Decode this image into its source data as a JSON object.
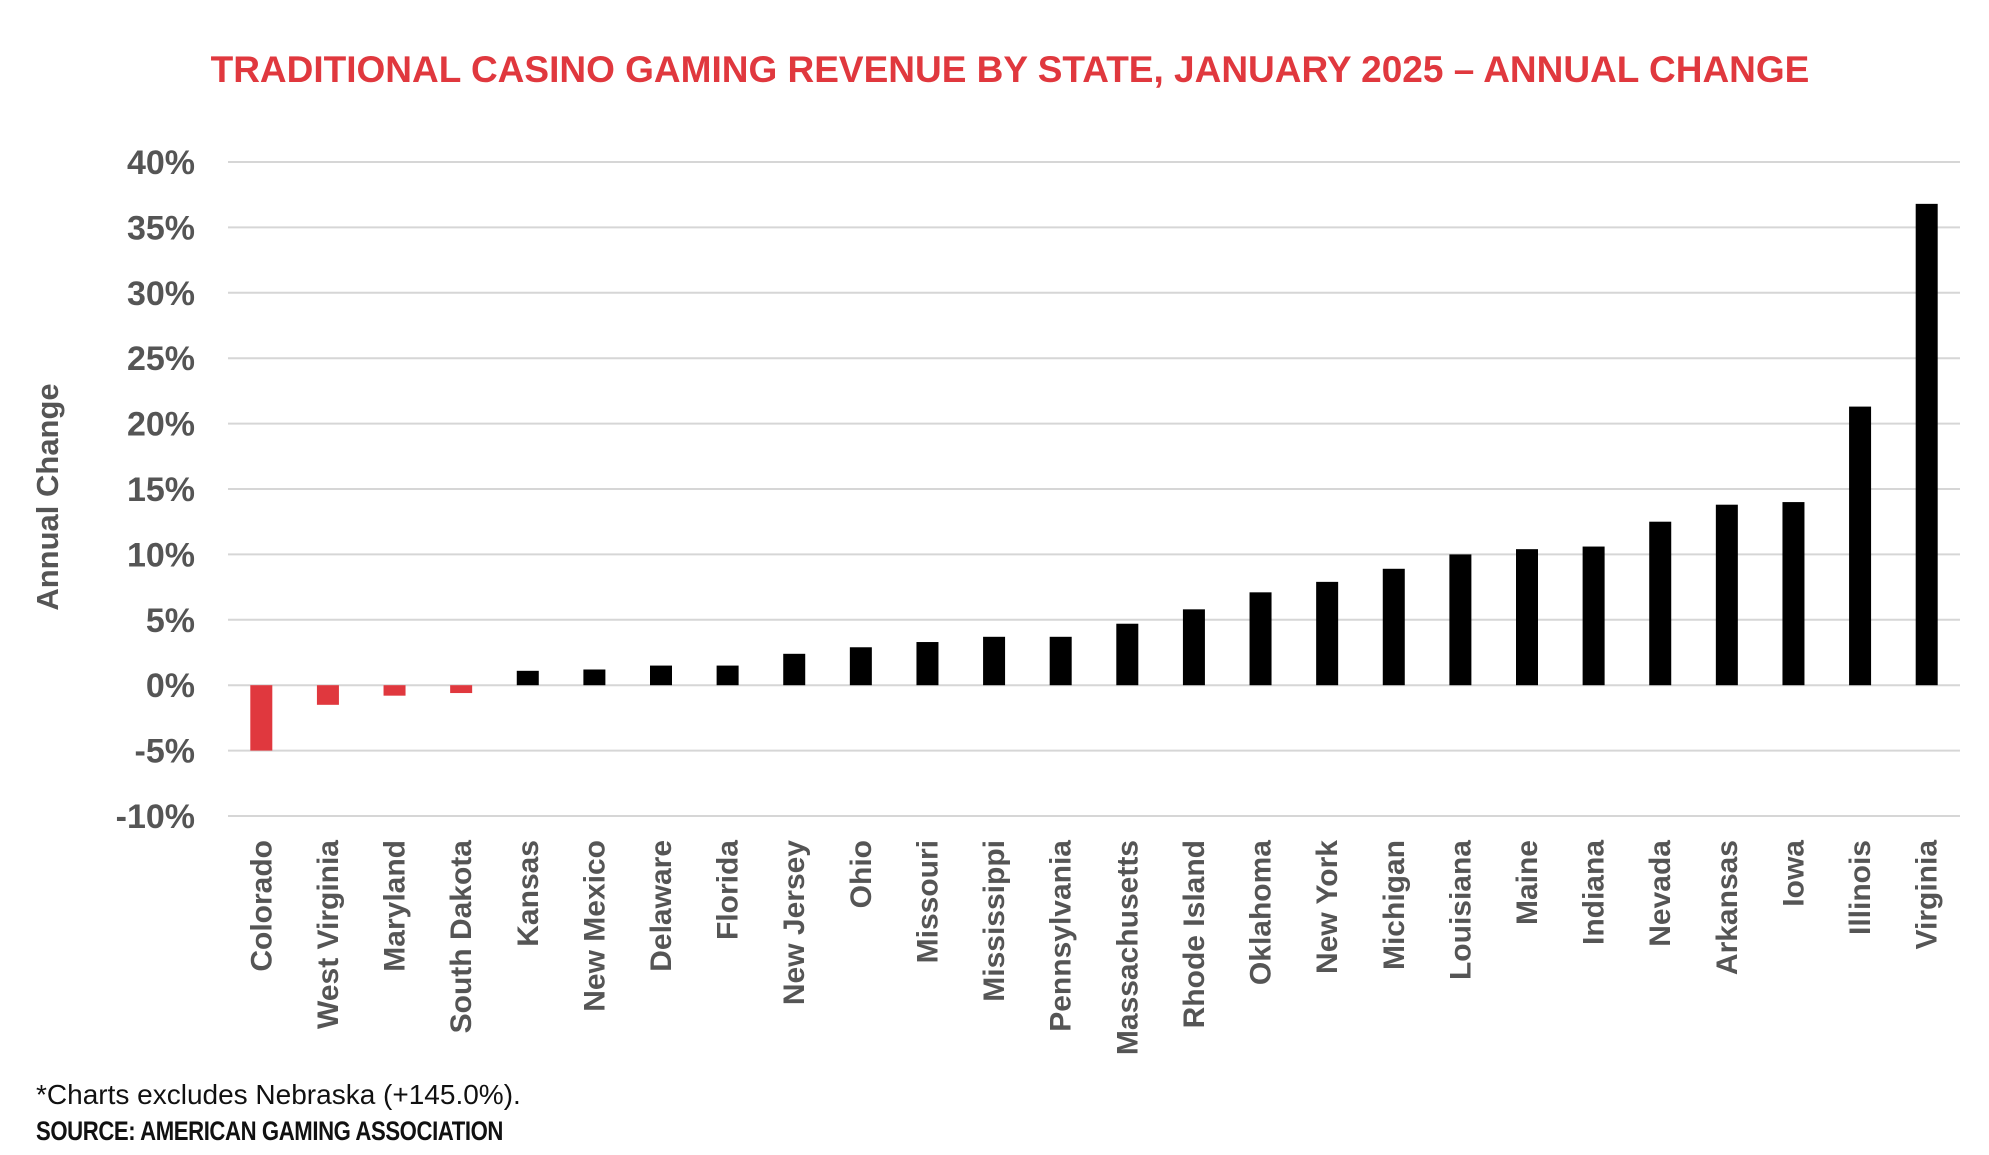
{
  "chart_data": {
    "type": "bar",
    "title": "TRADITIONAL CASINO GAMING REVENUE BY STATE, JANUARY 2025 – ANNUAL CHANGE",
    "xlabel": "",
    "ylabel": "Annual Change",
    "ylim": [
      -10,
      40
    ],
    "yticks": [
      40,
      35,
      30,
      25,
      20,
      15,
      10,
      5,
      0,
      -5,
      -10
    ],
    "ytick_labels": [
      "40%",
      "35%",
      "30%",
      "25%",
      "20%",
      "15%",
      "10%",
      "5%",
      "0%",
      "-5%",
      "-10%"
    ],
    "grid": true,
    "categories": [
      "Colorado",
      "West Virginia",
      "Maryland",
      "South Dakota",
      "Kansas",
      "New Mexico",
      "Delaware",
      "Florida",
      "New Jersey",
      "Ohio",
      "Missouri",
      "Mississippi",
      "Pennsylvania",
      "Massachusetts",
      "Rhode Island",
      "Oklahoma",
      "New York",
      "Michigan",
      "Louisiana",
      "Maine",
      "Indiana",
      "Nevada",
      "Arkansas",
      "Iowa",
      "Illinois",
      "Virginia"
    ],
    "values": [
      -5.0,
      -1.5,
      -0.8,
      -0.6,
      1.1,
      1.2,
      1.5,
      1.5,
      2.4,
      2.9,
      3.3,
      3.7,
      3.7,
      4.7,
      5.8,
      7.1,
      7.9,
      8.9,
      10.0,
      10.4,
      10.6,
      12.5,
      13.8,
      14.0,
      21.3,
      36.8
    ],
    "colors": {
      "negative": "#e0383e",
      "positive": "#000000",
      "title": "#e0383e",
      "grid": "#d6d6d6",
      "tick": "#555555",
      "category": "#555555"
    }
  },
  "footnote": "*Charts excludes Nebraska (+145.0%).",
  "source": "SOURCE: AMERICAN GAMING ASSOCIATION"
}
